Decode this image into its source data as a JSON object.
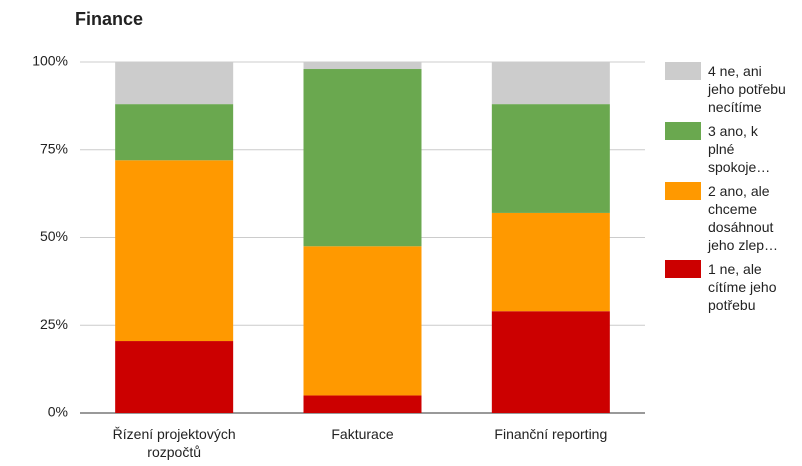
{
  "chart_data": {
    "type": "stacked_bar",
    "title": "Finance",
    "categories": [
      "Řízení projektových rozpočtů",
      "Fakturace",
      "Finanční reporting"
    ],
    "series": [
      {
        "name": "1 ne, ale cítíme jeho potřebu",
        "color": "#cc0000",
        "values": [
          20.5,
          5,
          29
        ]
      },
      {
        "name": "2 ano, ale chceme dosáhnout jeho zlep…",
        "color": "#ff9900",
        "values": [
          51.5,
          42.5,
          28
        ]
      },
      {
        "name": "3 ano, k plné spokoje…",
        "color": "#6aa84f",
        "values": [
          16,
          50.5,
          31
        ]
      },
      {
        "name": "4 ne, ani jeho potřebu necítíme",
        "color": "#cccccc",
        "values": [
          12,
          2,
          12
        ]
      }
    ],
    "ylim": [
      0,
      100
    ],
    "yticks": [
      {
        "value": 0,
        "label": "0%"
      },
      {
        "value": 25,
        "label": "25%"
      },
      {
        "value": 50,
        "label": "50%"
      },
      {
        "value": 75,
        "label": "75%"
      },
      {
        "value": 100,
        "label": "100%"
      }
    ],
    "grid": true,
    "legend": "right"
  }
}
